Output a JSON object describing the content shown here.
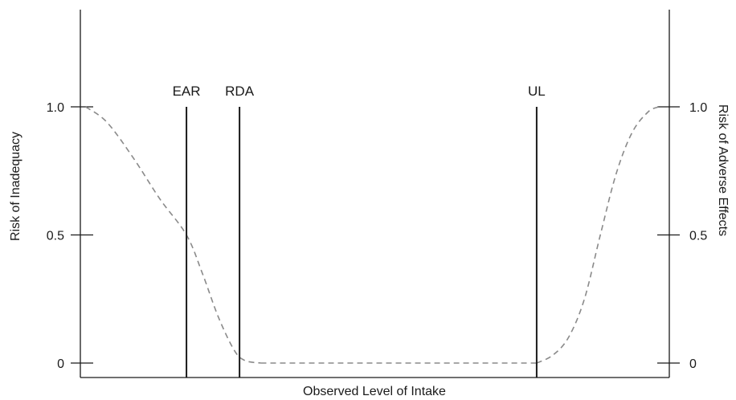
{
  "chart_data": {
    "type": "line",
    "xlabel": "Observed Level of Intake",
    "ylabel_left": "Risk of Inadequacy",
    "ylabel_right": "Risk of Adverse Effects",
    "ylim": [
      0,
      1.0
    ],
    "yticks": [
      {
        "value": 0,
        "label": "0"
      },
      {
        "value": 0.5,
        "label": "0.5"
      },
      {
        "value": 1.0,
        "label": "1.0"
      }
    ],
    "reference_lines": [
      {
        "name": "EAR",
        "x": 1.0
      },
      {
        "name": "RDA",
        "x": 1.5
      },
      {
        "name": "UL",
        "x": 4.3
      }
    ],
    "series": [
      {
        "curve": "inadequacy",
        "style": "dashed",
        "points": [
          [
            0.05,
            1.0
          ],
          [
            0.25,
            0.94
          ],
          [
            0.5,
            0.8
          ],
          [
            0.75,
            0.64
          ],
          [
            1.0,
            0.5
          ],
          [
            1.15,
            0.35
          ],
          [
            1.3,
            0.18
          ],
          [
            1.45,
            0.05
          ],
          [
            1.55,
            0.01
          ],
          [
            1.7,
            0.0
          ]
        ]
      },
      {
        "curve": "flat",
        "style": "dashed",
        "points": [
          [
            1.7,
            0.0
          ],
          [
            4.3,
            0.0
          ]
        ]
      },
      {
        "curve": "adverse",
        "style": "dashed",
        "points": [
          [
            4.3,
            0.0
          ],
          [
            4.45,
            0.03
          ],
          [
            4.6,
            0.1
          ],
          [
            4.75,
            0.25
          ],
          [
            4.9,
            0.5
          ],
          [
            5.05,
            0.74
          ],
          [
            5.2,
            0.9
          ],
          [
            5.35,
            0.98
          ],
          [
            5.45,
            1.0
          ]
        ]
      }
    ],
    "xlim": [
      0,
      5.55
    ],
    "grid": false,
    "colors": {
      "axis": "#1a1a1a",
      "dashed": "#8a8a8a",
      "ref": "#1a1a1a"
    }
  }
}
